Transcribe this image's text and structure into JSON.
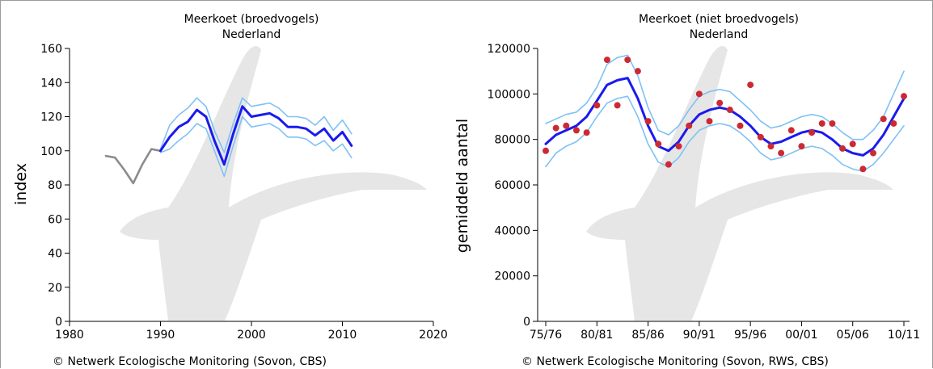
{
  "colors": {
    "main_line": "#1a1aee",
    "ci_line": "#7ec1f5",
    "pre_line": "#8c8c8c",
    "dots": "#cc2a33",
    "silhouette": "#e6e6e6"
  },
  "chart_data": [
    {
      "type": "line",
      "title": "Meerkoet (broedvogels)",
      "subtitle": "Nederland",
      "xlabel": "",
      "ylabel": "index",
      "xlim": [
        1980,
        2020
      ],
      "ylim": [
        0,
        160
      ],
      "xticks": [
        1980,
        1990,
        2000,
        2010,
        2020
      ],
      "xtick_labels": [
        "1980",
        "1990",
        "2000",
        "2010",
        "2020"
      ],
      "yticks": [
        0,
        20,
        40,
        60,
        80,
        100,
        120,
        140,
        160
      ],
      "ytick_labels": [
        "0",
        "20",
        "40",
        "60",
        "80",
        "100",
        "120",
        "140",
        "160"
      ],
      "grid": false,
      "legend": "none",
      "footer": "©  Netwerk Ecologische Monitoring (Sovon, CBS)",
      "series": [
        {
          "x": [
            1984,
            1985,
            1986,
            1987,
            1988,
            1989,
            1990
          ],
          "values": [
            97,
            96,
            89,
            81,
            92,
            101,
            100
          ]
        },
        {
          "x": [
            1990,
            1991,
            1992,
            1993,
            1994,
            1995,
            1996,
            1997,
            1998,
            1999,
            2000,
            2001,
            2002,
            2003,
            2004,
            2005,
            2006,
            2007,
            2008,
            2009,
            2010,
            2011
          ],
          "values": [
            100,
            108,
            114,
            117,
            124,
            120,
            105,
            92,
            110,
            126,
            120,
            121,
            122,
            119,
            114,
            114,
            113,
            109,
            113,
            106,
            111,
            103
          ]
        },
        {
          "x": [
            1990,
            1991,
            1992,
            1993,
            1994,
            1995,
            1996,
            1997,
            1998,
            1999,
            2000,
            2001,
            2002,
            2003,
            2004,
            2005,
            2006,
            2007,
            2008,
            2009,
            2010,
            2011
          ],
          "values": [
            101,
            115,
            121,
            125,
            131,
            126,
            111,
            99,
            116,
            131,
            126,
            127,
            128,
            125,
            120,
            120,
            119,
            115,
            120,
            112,
            118,
            110
          ]
        },
        {
          "x": [
            1990,
            1991,
            1992,
            1993,
            1994,
            1995,
            1996,
            1997,
            1998,
            1999,
            2000,
            2001,
            2002,
            2003,
            2004,
            2005,
            2006,
            2007,
            2008,
            2009,
            2010,
            2011
          ],
          "values": [
            99,
            101,
            106,
            110,
            116,
            113,
            99,
            85,
            103,
            120,
            114,
            115,
            116,
            113,
            108,
            108,
            107,
            103,
            106,
            100,
            104,
            96
          ]
        }
      ]
    },
    {
      "type": "line",
      "title": "Meerkoet (niet broedvogels)",
      "subtitle": "Nederland",
      "xlabel": "",
      "ylabel": "gemiddeld aantal",
      "xlim": [
        0,
        35
      ],
      "ylim": [
        0,
        120000
      ],
      "xticks": [
        0,
        5,
        10,
        15,
        20,
        25,
        30,
        35
      ],
      "xtick_labels": [
        "75/76",
        "80/81",
        "85/86",
        "90/91",
        "95/96",
        "00/01",
        "05/06",
        "10/11"
      ],
      "yticks": [
        0,
        20000,
        40000,
        60000,
        80000,
        100000,
        120000
      ],
      "ytick_labels": [
        "0",
        "20000",
        "40000",
        "60000",
        "80000",
        "100000",
        "120000"
      ],
      "grid": false,
      "legend": "none",
      "footer": "©  Netwerk Ecologische Monitoring (Sovon, RWS, CBS)",
      "series": [
        {
          "x": [
            0,
            1,
            2,
            3,
            4,
            5,
            6,
            7,
            8,
            9,
            10,
            11,
            12,
            13,
            14,
            15,
            16,
            17,
            18,
            19,
            20,
            21,
            22,
            23,
            24,
            25,
            26,
            27,
            28,
            29,
            30,
            31,
            32,
            33,
            34,
            35
          ],
          "values": [
            78000,
            82000,
            84000,
            86000,
            90000,
            97000,
            104000,
            106000,
            107000,
            98000,
            86000,
            77000,
            75000,
            79000,
            86000,
            91000,
            93000,
            94000,
            93000,
            90000,
            86000,
            81000,
            78000,
            79000,
            81000,
            83000,
            84000,
            83000,
            80000,
            76000,
            74000,
            73000,
            76000,
            82000,
            90000,
            98000
          ]
        },
        {
          "x": [
            0,
            1,
            2,
            3,
            4,
            5,
            6,
            7,
            8,
            9,
            10,
            11,
            12,
            13,
            14,
            15,
            16,
            17,
            18,
            19,
            20,
            21,
            22,
            23,
            24,
            25,
            26,
            27,
            28,
            29,
            30,
            31,
            32,
            33,
            34,
            35
          ],
          "values": [
            87000,
            89000,
            91000,
            92000,
            96000,
            103000,
            113000,
            116000,
            117000,
            108000,
            94000,
            84000,
            82000,
            86000,
            93000,
            99000,
            101000,
            102000,
            101000,
            97000,
            93000,
            88000,
            85000,
            86000,
            88000,
            90000,
            91000,
            90000,
            87000,
            83000,
            80000,
            80000,
            84000,
            90000,
            100000,
            110000
          ]
        },
        {
          "x": [
            0,
            1,
            2,
            3,
            4,
            5,
            6,
            7,
            8,
            9,
            10,
            11,
            12,
            13,
            14,
            15,
            16,
            17,
            18,
            19,
            20,
            21,
            22,
            23,
            24,
            25,
            26,
            27,
            28,
            29,
            30,
            31,
            32,
            33,
            34,
            35
          ],
          "values": [
            68000,
            74000,
            77000,
            79000,
            83000,
            90000,
            96000,
            98000,
            99000,
            90000,
            78000,
            70000,
            68000,
            72000,
            79000,
            84000,
            86000,
            87000,
            86000,
            83000,
            79000,
            74000,
            71000,
            72000,
            74000,
            76000,
            77000,
            76000,
            73000,
            69000,
            67000,
            66000,
            69000,
            74000,
            80000,
            86000
          ]
        },
        {
          "type": "scatter",
          "x": [
            0,
            1,
            2,
            3,
            4,
            5,
            6,
            7,
            8,
            9,
            10,
            11,
            12,
            13,
            14,
            15,
            16,
            17,
            18,
            19,
            20,
            21,
            22,
            23,
            24,
            25,
            26,
            27,
            28,
            29,
            30,
            31,
            32,
            33,
            34,
            35
          ],
          "values": [
            75000,
            85000,
            86000,
            84000,
            83000,
            95000,
            115000,
            95000,
            115000,
            110000,
            88000,
            78000,
            69000,
            77000,
            86000,
            100000,
            88000,
            96000,
            93000,
            86000,
            104000,
            81000,
            77000,
            74000,
            84000,
            77000,
            83000,
            87000,
            87000,
            76000,
            78000,
            67000,
            74000,
            89000,
            87000,
            99000
          ]
        }
      ]
    }
  ]
}
